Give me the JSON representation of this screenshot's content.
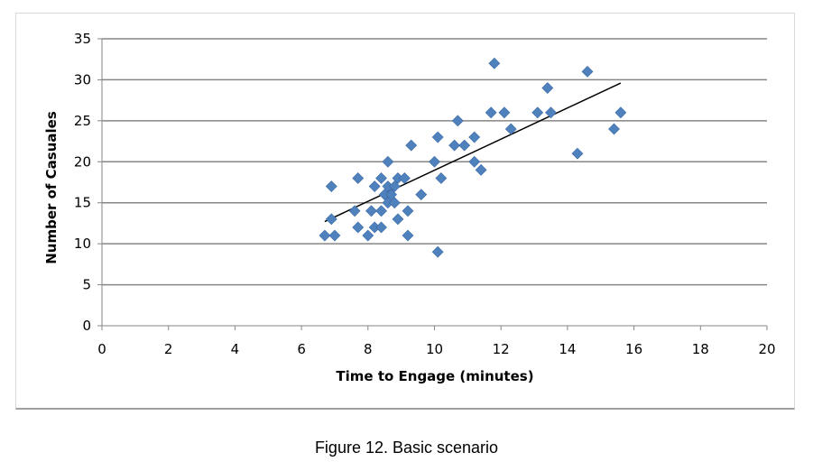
{
  "caption": "Figure 12. Basic scenario",
  "chart_data": {
    "type": "scatter",
    "title": "",
    "xlabel": "Time to Engage (minutes)",
    "ylabel": "Number of Casuales",
    "xlim": [
      0,
      20
    ],
    "ylim": [
      0,
      35
    ],
    "x_ticks": [
      0,
      2,
      4,
      6,
      8,
      10,
      12,
      14,
      16,
      18,
      20
    ],
    "y_ticks": [
      0,
      5,
      10,
      15,
      20,
      25,
      30,
      35
    ],
    "grid": "horizontal",
    "legend": "none",
    "marker_color": "#4f81bd",
    "trendline_color": "#000000",
    "series": [
      {
        "points": [
          [
            6.7,
            11
          ],
          [
            6.9,
            13
          ],
          [
            6.9,
            17
          ],
          [
            7.0,
            11
          ],
          [
            7.6,
            14
          ],
          [
            7.7,
            12
          ],
          [
            7.7,
            18
          ],
          [
            8.0,
            11
          ],
          [
            8.1,
            14
          ],
          [
            8.2,
            17
          ],
          [
            8.2,
            12
          ],
          [
            8.4,
            14
          ],
          [
            8.4,
            12
          ],
          [
            8.4,
            18
          ],
          [
            8.5,
            16
          ],
          [
            8.6,
            17
          ],
          [
            8.6,
            15
          ],
          [
            8.6,
            20
          ],
          [
            8.7,
            16
          ],
          [
            8.8,
            15
          ],
          [
            8.8,
            17
          ],
          [
            8.9,
            18
          ],
          [
            8.9,
            13
          ],
          [
            9.1,
            18
          ],
          [
            9.2,
            14
          ],
          [
            9.2,
            11
          ],
          [
            9.3,
            22
          ],
          [
            9.6,
            16
          ],
          [
            10.0,
            20
          ],
          [
            10.1,
            23
          ],
          [
            10.1,
            9
          ],
          [
            10.2,
            18
          ],
          [
            10.6,
            22
          ],
          [
            10.7,
            25
          ],
          [
            10.9,
            22
          ],
          [
            11.2,
            23
          ],
          [
            11.2,
            20
          ],
          [
            11.4,
            19
          ],
          [
            11.7,
            26
          ],
          [
            11.8,
            32
          ],
          [
            12.1,
            26
          ],
          [
            12.3,
            24
          ],
          [
            13.1,
            26
          ],
          [
            13.4,
            29
          ],
          [
            13.5,
            26
          ],
          [
            14.3,
            21
          ],
          [
            14.6,
            31
          ],
          [
            15.4,
            24
          ],
          [
            15.6,
            26
          ]
        ]
      }
    ],
    "trendline": {
      "from": [
        6.7,
        12.7
      ],
      "to": [
        15.6,
        29.6
      ]
    }
  }
}
